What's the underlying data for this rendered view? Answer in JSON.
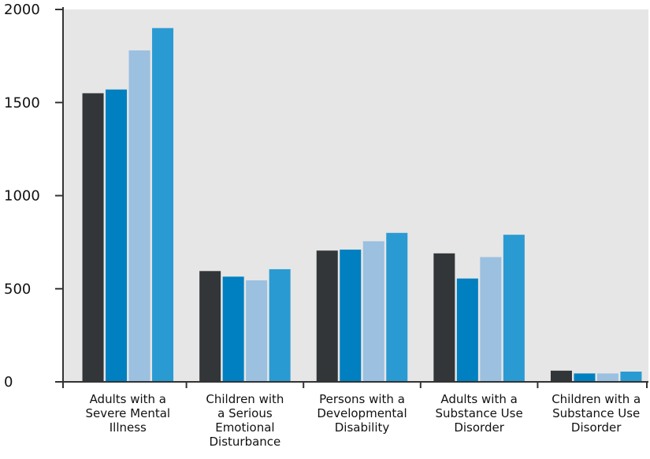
{
  "chart_data": {
    "type": "bar",
    "title": "",
    "xlabel": "",
    "ylabel": "",
    "ylim": [
      0,
      2000
    ],
    "yticks": [
      0,
      500,
      1000,
      1500,
      2000
    ],
    "grid": false,
    "background_color": "#e6e6e6",
    "categories": [
      [
        "Adults with a",
        "Severe Mental",
        "Illness"
      ],
      [
        "Children with",
        "a Serious",
        "Emotional",
        "Disturbance"
      ],
      [
        "Persons with a",
        "Developmental",
        "Disability"
      ],
      [
        "Adults with a",
        "Substance Use",
        "Disorder"
      ],
      [
        "Children with a",
        "Substance Use",
        "Disorder"
      ]
    ],
    "series": [
      {
        "color": "#333638",
        "values": [
          1550,
          595,
          705,
          690,
          60
        ]
      },
      {
        "color": "#0080c0",
        "values": [
          1570,
          565,
          710,
          555,
          45
        ]
      },
      {
        "color": "#9bc0e0",
        "values": [
          1780,
          545,
          755,
          670,
          45
        ]
      },
      {
        "color": "#2a9ad2",
        "values": [
          1900,
          605,
          800,
          790,
          55
        ]
      }
    ]
  }
}
